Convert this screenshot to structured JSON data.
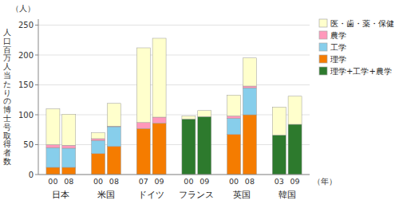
{
  "chart_data": {
    "type": "bar",
    "stacked": true,
    "categories": [
      "00",
      "08",
      "00",
      "08",
      "07",
      "09",
      "00",
      "09",
      "00",
      "08",
      "03",
      "09"
    ],
    "groups": [
      "日本",
      "米国",
      "ドイツ",
      "フランス",
      "英国",
      "韓国"
    ],
    "series": [
      {
        "name": "理学+工学+農学",
        "color": "#2D7A2D",
        "values": [
          0,
          0,
          0,
          0,
          0,
          0,
          93,
          97,
          0,
          0,
          66,
          84
        ]
      },
      {
        "name": "理学",
        "color": "#F57C00",
        "values": [
          12,
          12,
          35,
          47,
          77,
          86,
          0,
          0,
          67,
          100,
          0,
          0
        ]
      },
      {
        "name": "工学",
        "color": "#87CEEB",
        "values": [
          33,
          32,
          22,
          33,
          0,
          0,
          0,
          0,
          27,
          45,
          0,
          0
        ]
      },
      {
        "name": "農学",
        "color": "#FF99BB",
        "values": [
          5,
          5,
          3,
          1,
          10,
          10,
          0,
          0,
          4,
          3,
          0,
          0
        ]
      },
      {
        "name": "医・歯・薬・保健",
        "color": "#FFFFCC",
        "values": [
          60,
          52,
          10,
          38,
          125,
          132,
          5,
          10,
          35,
          47,
          47,
          47
        ]
      }
    ],
    "ylabel": "人口百万人当たりの博士号取得者数",
    "xlabel": "（年）",
    "annotations": [
      "（人）"
    ],
    "ylim": [
      0,
      260
    ],
    "yticks": [
      0,
      50,
      100,
      150,
      200,
      250
    ],
    "grid": true,
    "legend": "right"
  }
}
